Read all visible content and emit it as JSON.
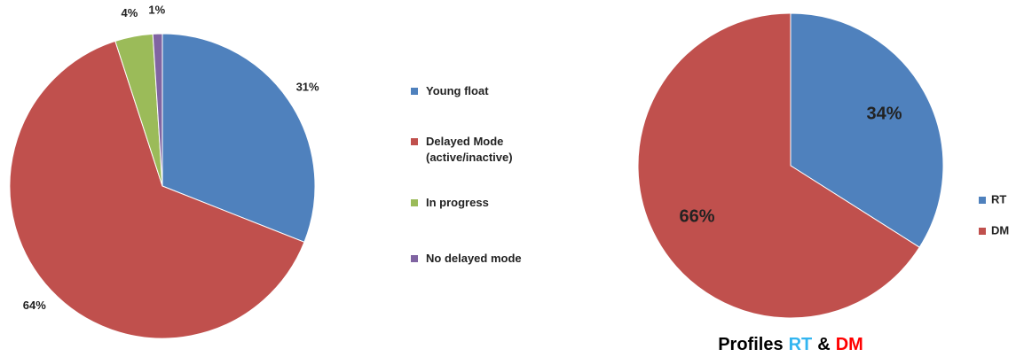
{
  "chart_data": [
    {
      "type": "pie",
      "categories": [
        "Young float",
        "Delayed Mode (active/inactive)",
        "In progress",
        "No delayed mode"
      ],
      "values": [
        31,
        64,
        4,
        1
      ],
      "value_labels": [
        "31%",
        "64%",
        "4%",
        "1%"
      ],
      "colors": [
        "#4f81bd",
        "#c0504d",
        "#9bbb59",
        "#8064a2"
      ],
      "legend": "right"
    },
    {
      "type": "pie",
      "title_parts": [
        {
          "text": "Profiles",
          "color": "#000000"
        },
        {
          "text": "RT",
          "color": "#33b5f0"
        },
        {
          "text": "&",
          "color": "#000000"
        },
        {
          "text": "DM",
          "color": "#ff0000"
        }
      ],
      "categories": [
        "RT",
        "DM"
      ],
      "values": [
        34,
        66
      ],
      "value_labels": [
        "34%",
        "66%"
      ],
      "colors": [
        "#4f81bd",
        "#c0504d"
      ],
      "legend": "right"
    }
  ]
}
